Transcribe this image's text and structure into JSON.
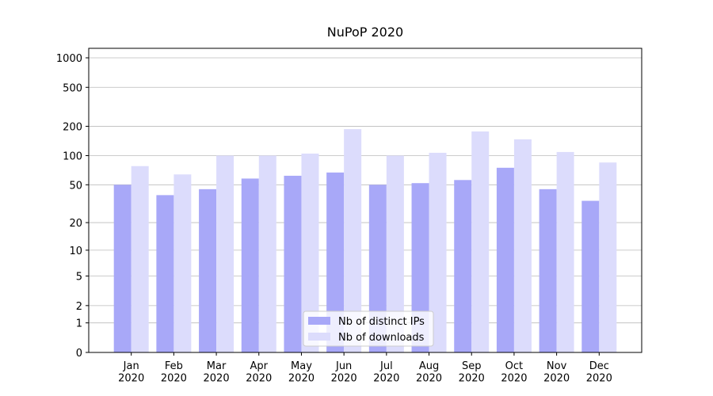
{
  "chart_data": {
    "type": "bar",
    "title": "NuPoP 2020",
    "categories": [
      "Jan\n2020",
      "Feb\n2020",
      "Mar\n2020",
      "Apr\n2020",
      "May\n2020",
      "Jun\n2020",
      "Jul\n2020",
      "Aug\n2020",
      "Sep\n2020",
      "Oct\n2020",
      "Nov\n2020",
      "Dec\n2020"
    ],
    "series": [
      {
        "name": "Nb of distinct IPs",
        "color": "#a8a8f8",
        "values": [
          50,
          39,
          45,
          58,
          62,
          67,
          50,
          52,
          56,
          75,
          45,
          34
        ]
      },
      {
        "name": "Nb of downloads",
        "color": "#dcdcfc",
        "values": [
          78,
          64,
          100,
          100,
          105,
          187,
          100,
          107,
          177,
          147,
          109,
          85
        ]
      }
    ],
    "yscale": "log1p",
    "ylim": [
      0,
      1250
    ],
    "yticks": [
      0,
      1,
      2,
      5,
      10,
      20,
      50,
      100,
      200,
      500,
      1000
    ],
    "grid": true,
    "legend": "lower center"
  }
}
